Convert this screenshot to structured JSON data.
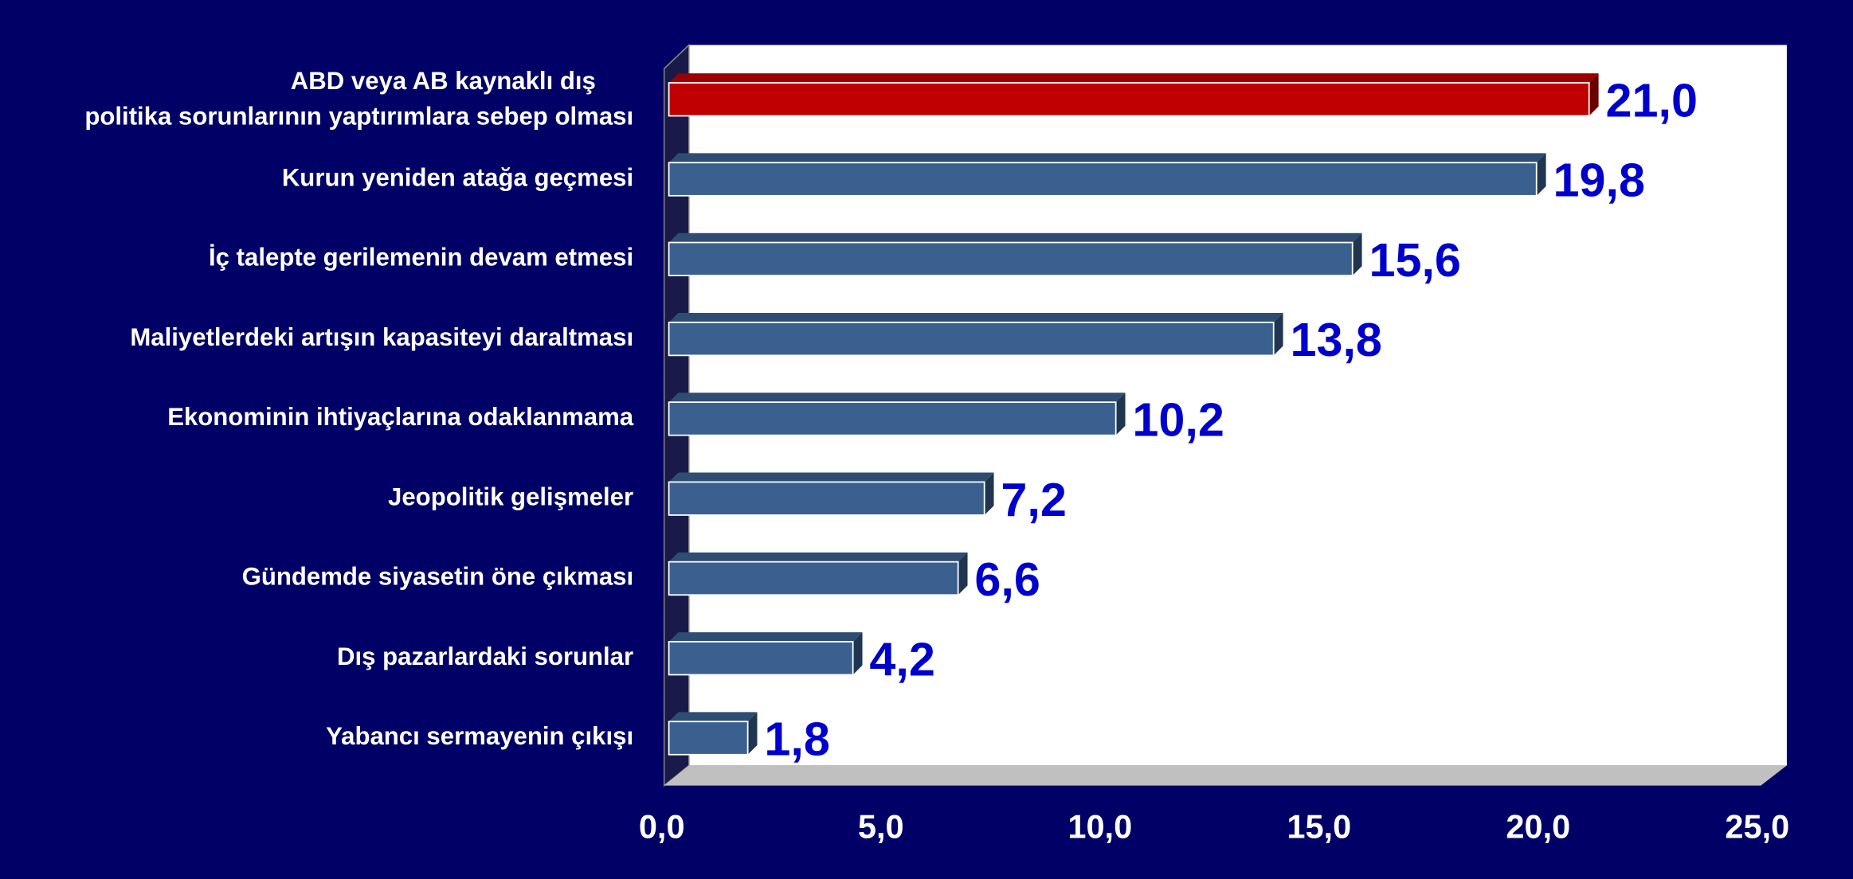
{
  "chart_data": {
    "type": "bar",
    "orientation": "horizontal",
    "style": "3d",
    "categories": [
      "ABD veya AB kaynaklı dış politika sorunlarının yaptırımlara sebep olması",
      "Kurun yeniden atağa geçmesi",
      "İç talepte gerilemenin devam etmesi",
      "Maliyetlerdeki artışın kapasiteyi daraltması",
      "Ekonominin ihtiyaçlarına odaklanmama",
      "Jeopolitik gelişmeler",
      "Gündemde siyasetin öne çıkması",
      "Dış pazarlardaki sorunlar",
      "Yabancı sermayenin çıkışı"
    ],
    "values": [
      21.0,
      19.8,
      15.6,
      13.8,
      10.2,
      7.2,
      6.6,
      4.2,
      1.8
    ],
    "value_labels": [
      "21,0",
      "19,8",
      "15,6",
      "13,8",
      "10,2",
      "7,2",
      "6,6",
      "4,2",
      "1,8"
    ],
    "colors": [
      "#c00000",
      "#3a6090",
      "#3a6090",
      "#3a6090",
      "#3a6090",
      "#3a6090",
      "#3a6090",
      "#3a6090",
      "#3a6090"
    ],
    "xlim": [
      0,
      25
    ],
    "xticks": [
      {
        "value": 0,
        "label": "0,0"
      },
      {
        "value": 5,
        "label": "5,0"
      },
      {
        "value": 10,
        "label": "10,0"
      },
      {
        "value": 15,
        "label": "15,0"
      },
      {
        "value": 20,
        "label": "20,0"
      },
      {
        "value": 25,
        "label": "25,0"
      }
    ]
  }
}
